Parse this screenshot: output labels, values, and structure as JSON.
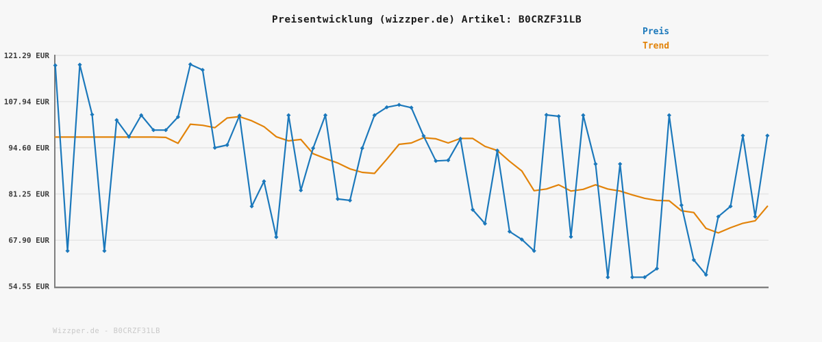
{
  "title": "Preisentwicklung (wizzper.de) Artikel: B0CRZF31LB",
  "watermark": "Wizzper.de - B0CRZF31LB",
  "legend": {
    "preis": "Preis",
    "trend": "Trend"
  },
  "colors": {
    "preis": "#1b78bb",
    "trend": "#e28309",
    "background": "#f7f7f7",
    "grid": "#e4e4e4",
    "axis": "#7e7e7e",
    "title_text": "#1a1a1a",
    "tick_text": "#3a3a3a",
    "watermark_text": "#c9c9c9"
  },
  "chart_data": {
    "type": "line",
    "title": "Preisentwicklung (wizzper.de) Artikel: B0CRZF31LB",
    "xlabel": "",
    "ylabel": "EUR",
    "x_axis_labels": "none",
    "grid": "horizontal",
    "legend_position": "top-right",
    "ylim": [
      54.55,
      121.29
    ],
    "ytick_values": [
      121.29,
      107.94,
      94.6,
      81.25,
      67.9,
      54.55
    ],
    "ytick_labels": [
      "121.29 EUR",
      "107.94 EUR",
      "94.60 EUR",
      "81.25 EUR",
      "67.90 EUR",
      "54.55 EUR"
    ],
    "series": [
      {
        "name": "Preis",
        "color": "#1b78bb",
        "markers": true,
        "values": [
          118.4,
          64.8,
          118.6,
          104.2,
          64.8,
          102.6,
          97.8,
          104.0,
          99.7,
          99.7,
          103.5,
          118.7,
          117.1,
          94.6,
          95.4,
          103.9,
          77.7,
          84.9,
          68.8,
          104.0,
          82.3,
          94.5,
          104.0,
          79.8,
          79.4,
          94.5,
          104.0,
          106.3,
          107.0,
          106.2,
          98.0,
          90.8,
          91.0,
          97.2,
          76.7,
          72.7,
          93.8,
          70.4,
          68.1,
          64.8,
          104.1,
          103.7,
          68.9,
          104.0,
          89.9,
          57.2,
          89.9,
          57.2,
          57.2,
          59.7,
          104.0,
          78.0,
          62.2,
          57.9,
          74.7,
          77.7,
          98.1,
          74.7,
          98.1
        ]
      },
      {
        "name": "Trend",
        "color": "#e28309",
        "markers": false,
        "values": [
          97.7,
          97.7,
          97.7,
          97.7,
          97.7,
          97.7,
          97.7,
          97.7,
          97.7,
          97.6,
          95.9,
          101.4,
          101.1,
          100.4,
          103.2,
          103.6,
          102.4,
          100.7,
          97.8,
          96.6,
          97.0,
          92.9,
          91.5,
          90.2,
          88.5,
          87.5,
          87.2,
          91.3,
          95.6,
          96.0,
          97.5,
          97.2,
          96.0,
          97.3,
          97.3,
          95.0,
          93.8,
          90.7,
          87.9,
          82.2,
          82.7,
          83.9,
          82.1,
          82.6,
          83.9,
          82.7,
          82.1,
          81.0,
          80.0,
          79.4,
          79.3,
          76.4,
          75.9,
          71.3,
          70.0,
          71.5,
          72.8,
          73.5,
          77.7
        ]
      }
    ]
  }
}
